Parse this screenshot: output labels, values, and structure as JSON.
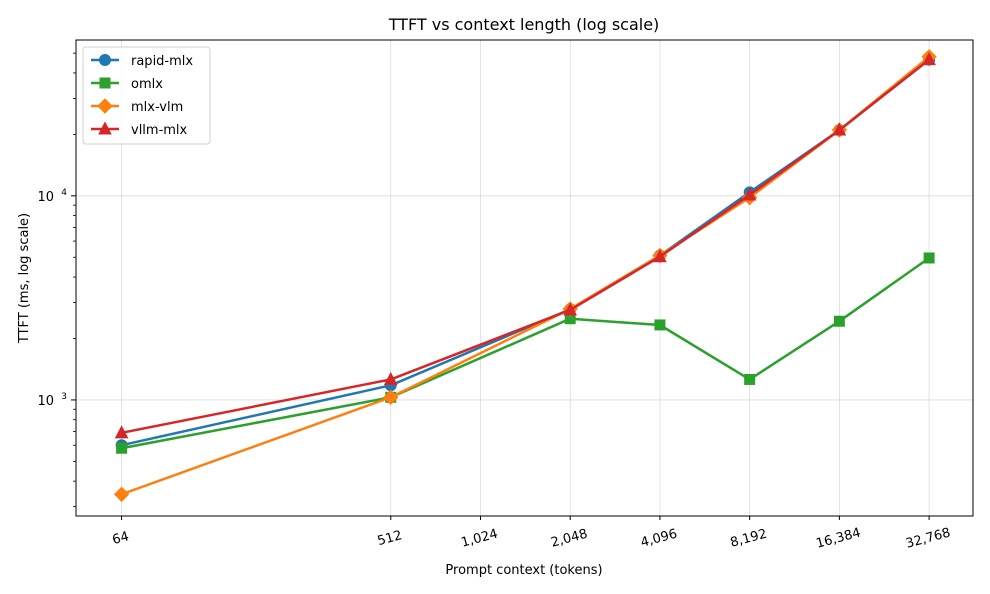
{
  "chart_data": {
    "type": "line",
    "title": "TTFT vs context length (log scale)",
    "xlabel": "Prompt context (tokens)",
    "ylabel": "TTFT (ms, log scale)",
    "x_scale": "log2",
    "y_scale": "log10",
    "xlim": [
      45,
      46000
    ],
    "ylim": [
      270,
      58000
    ],
    "grid": true,
    "legend_position": "top-left",
    "x_ticks": [
      64,
      512,
      1024,
      2048,
      4096,
      8192,
      16384,
      32768
    ],
    "x_tick_labels": [
      "64",
      "512",
      "1,024",
      "2,048",
      "4,096",
      "8,192",
      "16,384",
      "32,768"
    ],
    "y_ticks": [
      1000,
      10000
    ],
    "y_tick_labels": [
      {
        "base": "10",
        "exp": "3"
      },
      {
        "base": "10",
        "exp": "4"
      }
    ],
    "series": [
      {
        "name": "rapid-mlx",
        "color": "#1f77b4",
        "marker": "circle",
        "points": [
          [
            64,
            600
          ],
          [
            512,
            1180
          ],
          [
            2048,
            2780
          ],
          [
            4096,
            5100
          ],
          [
            8192,
            10400
          ],
          [
            16384,
            21000
          ],
          [
            32768,
            46500
          ]
        ]
      },
      {
        "name": "omlx",
        "color": "#2ca02c",
        "marker": "square",
        "points": [
          [
            64,
            580
          ],
          [
            512,
            1030
          ],
          [
            2048,
            2500
          ],
          [
            4096,
            2330
          ],
          [
            8192,
            1260
          ],
          [
            16384,
            2430
          ],
          [
            32768,
            4960
          ]
        ]
      },
      {
        "name": "mlx-vlm",
        "color": "#ff7f0e",
        "marker": "diamond",
        "points": [
          [
            64,
            345
          ],
          [
            512,
            1030
          ],
          [
            2048,
            2790
          ],
          [
            4096,
            5100
          ],
          [
            8192,
            9800
          ],
          [
            16384,
            21000
          ],
          [
            32768,
            48000
          ]
        ]
      },
      {
        "name": "vllm-mlx",
        "color": "#d62728",
        "marker": "triangle",
        "points": [
          [
            64,
            690
          ],
          [
            512,
            1260
          ],
          [
            2048,
            2760
          ],
          [
            4096,
            5030
          ],
          [
            8192,
            10100
          ],
          [
            16384,
            21000
          ],
          [
            32768,
            46500
          ]
        ]
      }
    ]
  }
}
